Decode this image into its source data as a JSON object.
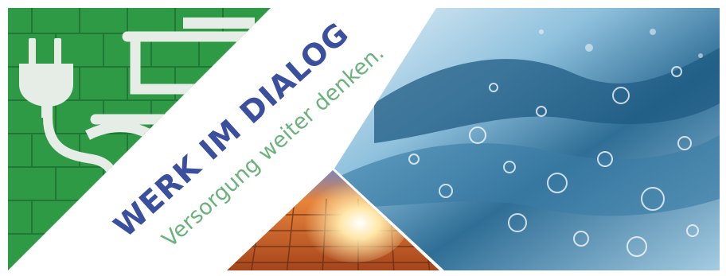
{
  "banner": {
    "headline": "WERK IM DIALOG",
    "tagline": "Versorgung weiter denken.",
    "panels": {
      "left": "green parking space with white electric-plug charging symbol",
      "bottom": "solar panel with sun glare",
      "right": "splashing water with bubbles"
    }
  },
  "colors": {
    "headline": "#3a4f9e",
    "tagline": "#6cb27c",
    "grass": "#2f9a45",
    "paint": "#e6ece6",
    "water": "#4d8fb5",
    "solar": "#c85a1c"
  }
}
